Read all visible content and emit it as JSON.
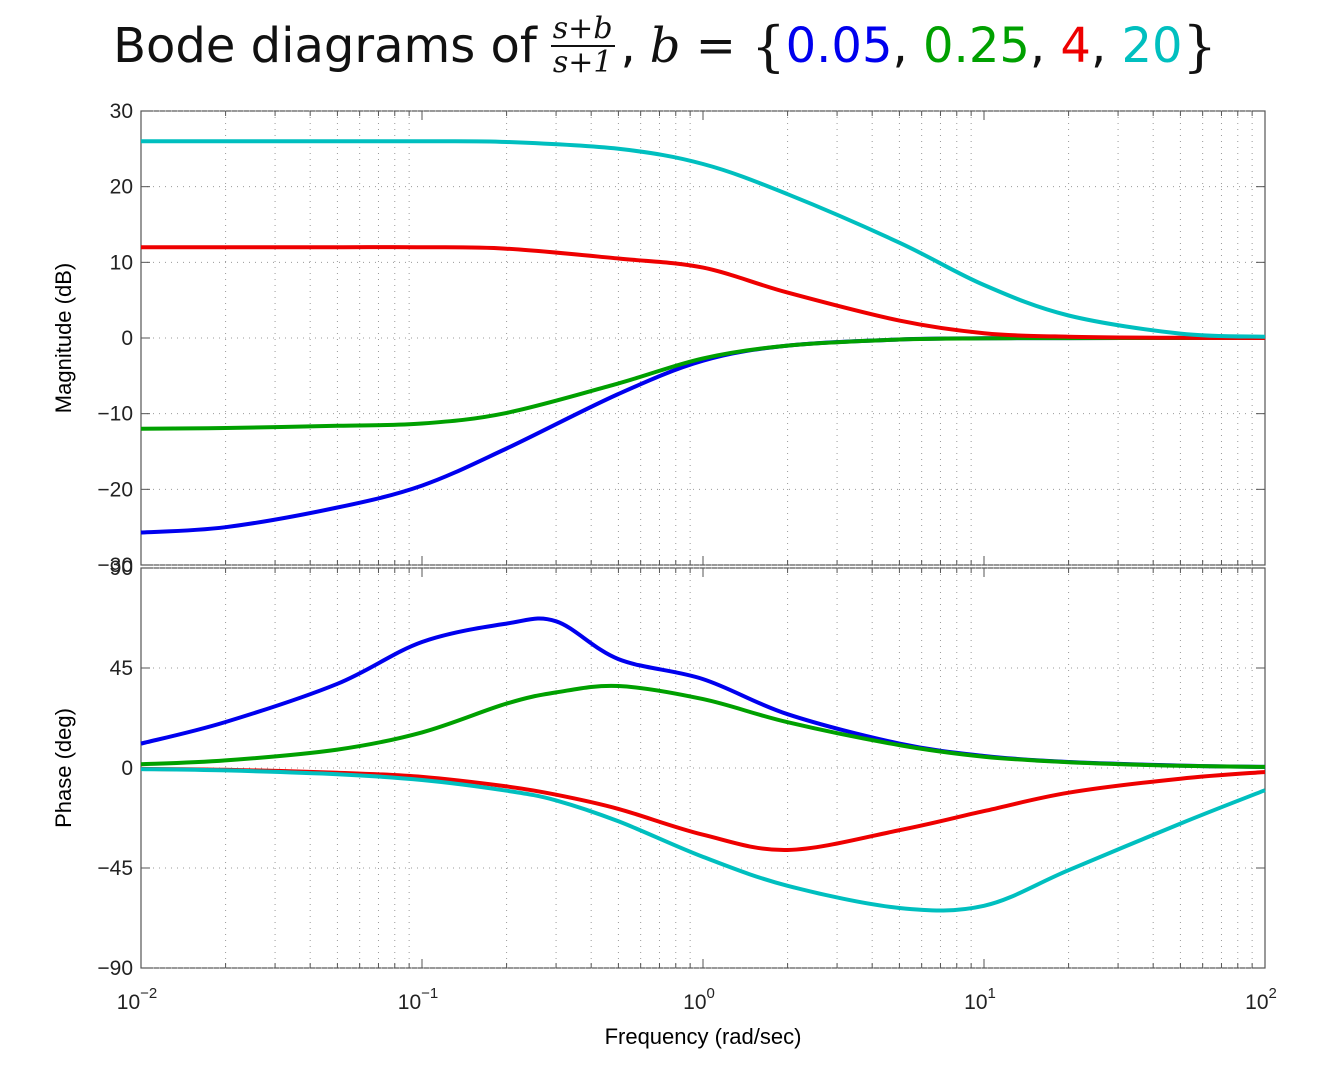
{
  "title": {
    "prefix": "Bode diagrams of",
    "frac_num": "s+b",
    "frac_den": "s+1",
    "comma": ",",
    "var": "b",
    "equals": " = ",
    "open_brace": "{",
    "close_brace": "}",
    "sep": ", ",
    "values": [
      {
        "text": "0.05",
        "color": "#0000ee"
      },
      {
        "text": "0.25",
        "color": "#00a000"
      },
      {
        "text": "4",
        "color": "#ee0000"
      },
      {
        "text": "20",
        "color": "#00bfbf"
      }
    ]
  },
  "chart_data": [
    {
      "type": "line",
      "panel": "magnitude",
      "ylabel": "Magnitude (dB)",
      "xscale": "log",
      "xlim": [
        0.01,
        100
      ],
      "ylim": [
        -30,
        30
      ],
      "yticks": [
        30,
        20,
        10,
        0,
        -10,
        -20,
        -30
      ],
      "ytick_labels": [
        "30",
        "20",
        "10",
        "0",
        "−10",
        "−20",
        "−30"
      ],
      "grid": true,
      "x": [
        0.01,
        0.02,
        0.05,
        0.1,
        0.2,
        0.5,
        1,
        2,
        5,
        10,
        20,
        50,
        100
      ],
      "series": [
        {
          "color": "#0000ee",
          "values": [
            -25.7,
            -25.0,
            -22.4,
            -19.5,
            -14.6,
            -7.4,
            -3.0,
            -1.0,
            -0.2,
            -0.04,
            -0.01,
            0.0,
            0.0
          ]
        },
        {
          "color": "#00a000",
          "values": [
            -12.0,
            -11.9,
            -11.6,
            -11.3,
            -9.9,
            -6.0,
            -2.7,
            -1.0,
            -0.2,
            -0.05,
            -0.01,
            0.0,
            0.0
          ]
        },
        {
          "color": "#ee0000",
          "values": [
            12.0,
            12.0,
            12.0,
            12.0,
            11.8,
            10.5,
            9.3,
            6.0,
            2.3,
            0.63,
            0.17,
            0.03,
            0.0
          ]
        },
        {
          "color": "#00bfbf",
          "values": [
            26.0,
            26.0,
            26.0,
            26.0,
            25.9,
            25.0,
            23.0,
            19.0,
            12.6,
            7.0,
            2.98,
            0.58,
            0.17
          ]
        }
      ]
    },
    {
      "type": "line",
      "panel": "phase",
      "ylabel": "Phase (deg)",
      "xlabel": "Frequency  (rad/sec)",
      "xscale": "log",
      "xlim": [
        0.01,
        100
      ],
      "ylim": [
        -90,
        90
      ],
      "yticks": [
        90,
        45,
        0,
        -45,
        -90
      ],
      "ytick_labels": [
        "90",
        "45",
        "0",
        "−45",
        "−90"
      ],
      "xticks": [
        0.01,
        0.1,
        1,
        10,
        100
      ],
      "xtick_labels": [
        {
          "base": "10",
          "exp": "−2"
        },
        {
          "base": "10",
          "exp": "−1"
        },
        {
          "base": "10",
          "exp": "0"
        },
        {
          "base": "10",
          "exp": "1"
        },
        {
          "base": "10",
          "exp": "2"
        }
      ],
      "grid": true,
      "x": [
        0.01,
        0.02,
        0.05,
        0.1,
        0.2,
        0.3,
        0.5,
        1,
        2,
        5,
        10,
        20,
        50,
        100
      ],
      "series": [
        {
          "color": "#0000ee",
          "values": [
            11.0,
            20.7,
            37.9,
            56.7,
            65.0,
            66.0,
            49.0,
            40.0,
            24.2,
            11.0,
            5.4,
            2.7,
            1.1,
            0.5
          ]
        },
        {
          "color": "#00a000",
          "values": [
            1.7,
            3.4,
            8.3,
            16.0,
            29.0,
            34.0,
            36.9,
            31.0,
            20.6,
            10.3,
            5.1,
            2.6,
            1.0,
            0.5
          ]
        },
        {
          "color": "#ee0000",
          "values": [
            -0.4,
            -0.8,
            -2.1,
            -4.0,
            -8.3,
            -12.0,
            -18.4,
            -30.0,
            -36.9,
            -28.0,
            -19.4,
            -11.1,
            -4.8,
            -1.8
          ]
        },
        {
          "color": "#00bfbf",
          "values": [
            -0.5,
            -1.1,
            -2.8,
            -5.4,
            -10.2,
            -14.6,
            -24.0,
            -40.0,
            -53.0,
            -63.0,
            -62.0,
            -46.0,
            -25.0,
            -10.0
          ]
        }
      ]
    }
  ]
}
